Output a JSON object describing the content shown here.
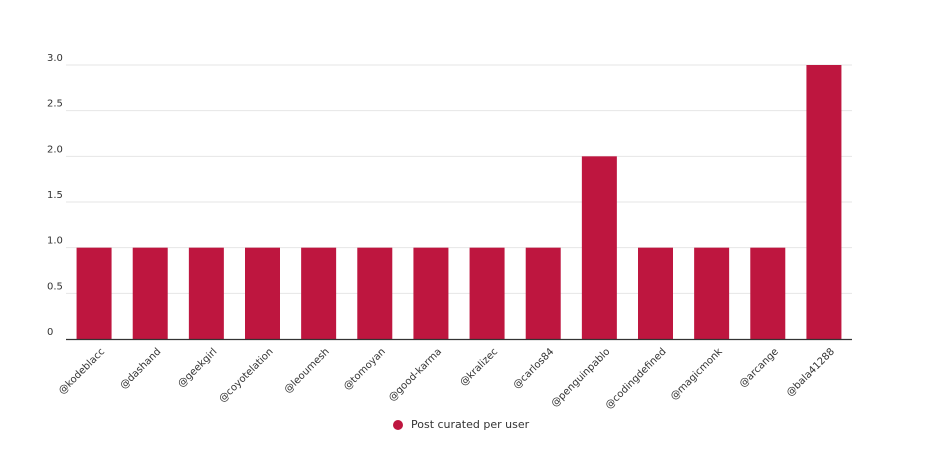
{
  "chart_data": {
    "type": "bar",
    "categories": [
      "@kodeblacc",
      "@dashand",
      "@geekgirl",
      "@coyotelation",
      "@leoumesh",
      "@tomoyan",
      "@good-karma",
      "@kralizec",
      "@carlos84",
      "@penguinpablo",
      "@codingdefined",
      "@magicmonk",
      "@arcange",
      "@bala41288"
    ],
    "series": [
      {
        "name": "Post curated per user",
        "values": [
          1,
          1,
          1,
          1,
          1,
          1,
          1,
          1,
          1,
          2,
          1,
          1,
          1,
          3
        ]
      }
    ],
    "yticks": [
      "0",
      "0.5",
      "1.0",
      "1.5",
      "2.0",
      "2.5",
      "3.0"
    ],
    "ylim": [
      0,
      3
    ],
    "grid": true,
    "legend_position": "bottom-center",
    "colors": {
      "bar": "#be163f",
      "grid": "#e6e6e6",
      "axis": "#333333",
      "tick_text": "#333333"
    }
  }
}
